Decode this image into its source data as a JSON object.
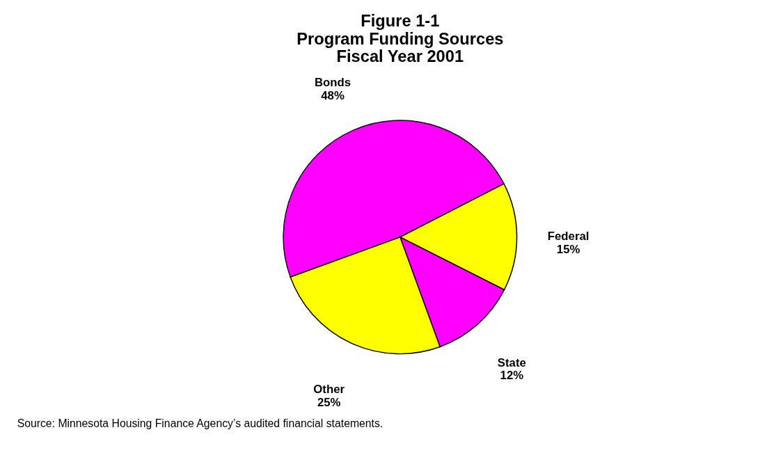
{
  "chart_data": {
    "type": "pie",
    "title": "Figure 1-1\nProgram Funding Sources\nFiscal Year 2001",
    "categories": [
      "Bonds",
      "Federal",
      "State",
      "Other"
    ],
    "values": [
      48,
      15,
      12,
      25
    ],
    "colors": [
      "#ff00ff",
      "#ffff00",
      "#ff00ff",
      "#ffff00"
    ],
    "value_labels": [
      "48%",
      "15%",
      "12%",
      "25%"
    ],
    "legend": false,
    "annotations": [
      "Source:  Minnesota Housing Finance Agency’s audited financial statements."
    ]
  }
}
